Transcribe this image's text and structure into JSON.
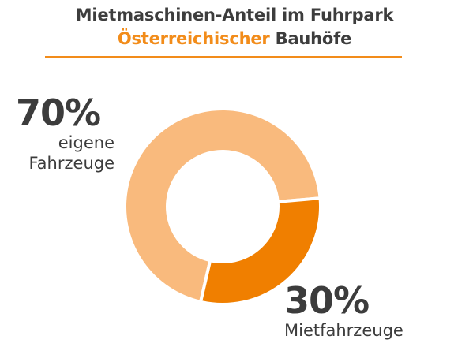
{
  "title": {
    "line1": "Mietmaschinen-Anteil im Fuhrpark",
    "line2_accent": "Österreichischer",
    "line2_rest": " Bauhöfe"
  },
  "colors": {
    "accent": "#f28c1a",
    "own_slice": "#f9ba7d",
    "rent_slice": "#f07f00",
    "text": "#3c3c3c"
  },
  "chart_data": {
    "type": "pie",
    "style": "donut",
    "categories": [
      "eigene Fahrzeuge",
      "Mietfahrzeuge"
    ],
    "values": [
      70,
      30
    ],
    "unit": "%",
    "labels": [
      {
        "value": "70%",
        "name_line1": "eigene",
        "name_line2": "Fahrzeuge"
      },
      {
        "value": "30%",
        "name_line1": "Mietfahrzeuge",
        "name_line2": ""
      }
    ],
    "legend": "none"
  }
}
